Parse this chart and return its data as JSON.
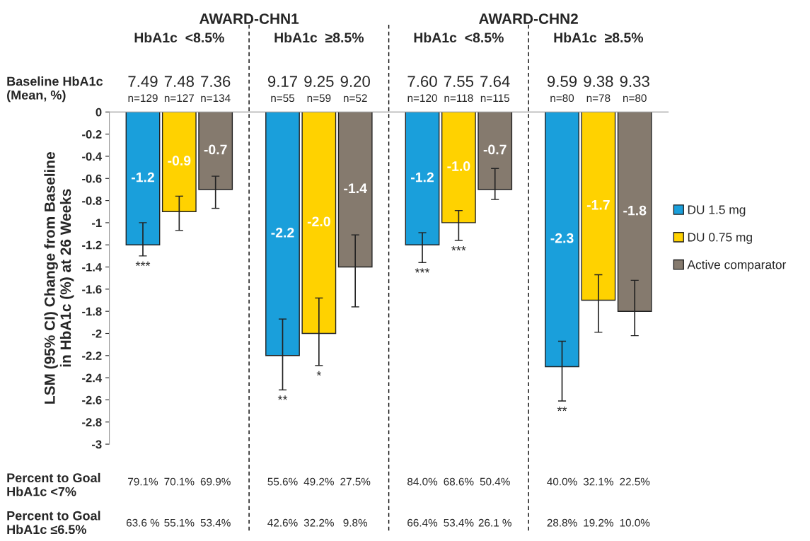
{
  "chart_data": {
    "type": "bar",
    "categories": [
      "HbA1c  <8.5%",
      "HbA1c  ≥8.5%",
      "HbA1c  <8.5%",
      "HbA1c  ≥8.5%"
    ],
    "ylabel": "LSM (95% CI) Change from Baseline\nin HbA1c (%) at 26 Weeks",
    "series": [
      {
        "name": "DU 1.5 mg",
        "color": "#1a9fdb",
        "values": [
          -1.2,
          -2.2,
          -1.2,
          -2.3
        ],
        "errors": [
          [
            -1.3,
            -1.0
          ],
          [
            -2.51,
            -1.87
          ],
          [
            -1.36,
            -1.09
          ],
          [
            -2.61,
            -2.07
          ]
        ],
        "value_labels": [
          "-1.2",
          "-2.2",
          "-1.2",
          "-2.3"
        ]
      },
      {
        "name": "DU 0.75 mg",
        "color": "#ffd200",
        "values": [
          -0.9,
          -2.0,
          -1.0,
          -1.7
        ],
        "errors": [
          [
            -1.07,
            -0.76
          ],
          [
            -2.29,
            -1.68
          ],
          [
            -1.16,
            -0.89
          ],
          [
            -1.99,
            -1.47
          ]
        ],
        "value_labels": [
          "-0.9",
          "-2.0",
          "-1.0",
          "-1.7"
        ]
      },
      {
        "name": "Active comparator",
        "color": "#857a6e",
        "values": [
          -0.7,
          -1.4,
          -0.7,
          -1.8
        ],
        "errors": [
          [
            -0.87,
            -0.58
          ],
          [
            -1.76,
            -1.11
          ],
          [
            -0.79,
            -0.51
          ],
          [
            -2.02,
            -1.52
          ]
        ],
        "value_labels": [
          "-0.7",
          "-1.4",
          "-0.7",
          "-1.8"
        ]
      }
    ],
    "ylim": [
      -3,
      0
    ],
    "yticks": [
      0,
      -0.2,
      -0.4,
      -0.6,
      -0.8,
      -1,
      -1.2,
      -1.4,
      -1.6,
      -1.8,
      -2,
      -2.2,
      -2.4,
      -2.6,
      -2.8,
      -3
    ],
    "grid": false,
    "legend": "right",
    "annotations": [
      "AWARD-CHN1",
      "AWARD-CHN2",
      "Baseline HbA1c\n(Mean, %)",
      "7.49",
      "7.48",
      "7.36",
      "9.17",
      "9.25",
      "9.20",
      "7.60",
      "7.55",
      "7.64",
      "9.59",
      "9.38",
      "9.33",
      "n=129",
      "n=127",
      "n=134",
      "n=55",
      "n=59",
      "n=52",
      "n=120",
      "n=118",
      "n=115",
      "n=80",
      "n=78",
      "n=80",
      "Percent to Goal\nHbA1c <7%",
      "79.1%",
      "70.1%",
      "69.9%",
      "55.6%",
      "49.2%",
      "27.5%",
      "84.0%",
      "68.6%",
      "50.4%",
      "40.0%",
      "32.1%",
      "22.5%",
      "Percent to Goal\nHbA1c ≤6.5%",
      "63.6 %",
      "55.1%",
      "53.4%",
      "42.6%",
      "32.2%",
      "9.8%",
      "66.4%",
      "53.4%",
      "26.1 %",
      "28.8%",
      "19.2%",
      "10.0%",
      "***",
      "**",
      "*",
      "***",
      "***",
      "**"
    ]
  }
}
